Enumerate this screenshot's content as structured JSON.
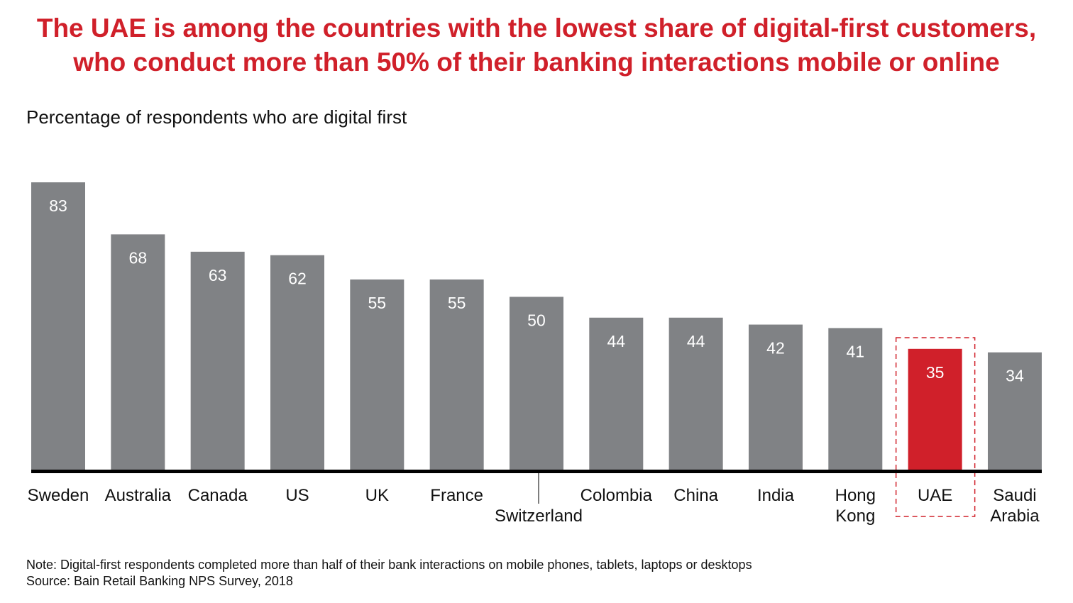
{
  "title_lines": [
    "The UAE is among the countries with the lowest share of digital-first customers,",
    "who conduct more than 50% of their banking interactions mobile or online"
  ],
  "chart_data": {
    "type": "bar",
    "title": "The UAE is among the countries with the lowest share of digital-first customers, who conduct more than 50% of their banking interactions mobile or online",
    "ylabel": "Percentage of respondents who are digital first",
    "categories": [
      "Sweden",
      "Australia",
      "Canada",
      "US",
      "UK",
      "France",
      "Switzerland",
      "Colombia",
      "China",
      "India",
      "Hong Kong",
      "UAE",
      "Saudi Arabia"
    ],
    "category_lines": [
      [
        "Sweden"
      ],
      [
        "Australia"
      ],
      [
        "Canada"
      ],
      [
        "US"
      ],
      [
        "UK"
      ],
      [
        "France"
      ],
      [
        "Switzerland"
      ],
      [
        "Colombia"
      ],
      [
        "China"
      ],
      [
        "India"
      ],
      [
        "Hong",
        "Kong"
      ],
      [
        "UAE"
      ],
      [
        "Saudi",
        "Arabia"
      ]
    ],
    "values": [
      83,
      68,
      63,
      62,
      55,
      55,
      50,
      44,
      44,
      42,
      41,
      35,
      34
    ],
    "highlight": "UAE",
    "ylim": [
      0,
      83
    ],
    "grid": false,
    "colors": {
      "bar": "#808285",
      "highlight": "#d0202a",
      "axis": "#000000"
    }
  },
  "note": "Note: Digital-first respondents completed more than half of their bank interactions on mobile phones, tablets, laptops or desktops",
  "source": "Source: Bain Retail Banking NPS Survey, 2018"
}
